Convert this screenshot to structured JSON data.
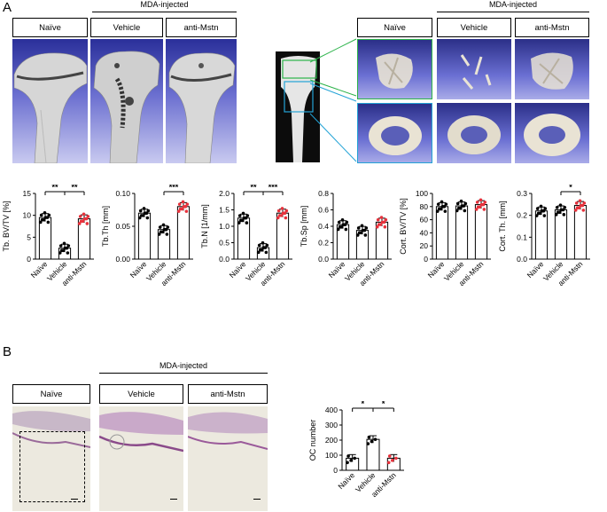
{
  "panelA": {
    "letter": "A",
    "group_header_left": "MDA-injected",
    "group_header_right": "MDA-injected",
    "labels_left": [
      "Naïve",
      "Vehicle",
      "anti-Mstn"
    ],
    "labels_right": [
      "Naïve",
      "Vehicle",
      "anti-Mstn"
    ]
  },
  "panelB": {
    "letter": "B",
    "group_header": "MDA-injected",
    "labels": [
      "Naïve",
      "Vehicle",
      "anti-Mstn"
    ]
  },
  "colors": {
    "naive": "#000000",
    "vehicle": "#000000",
    "anti_mstn": "#e8323c",
    "green_box": "#2cb34a",
    "cyan_box": "#23a3d6"
  },
  "chart_data": [
    {
      "type": "bar",
      "ylabel": "Tb. BV/TV [%]",
      "categories": [
        "Naïve",
        "Vehicle",
        "anti-Mstn"
      ],
      "values": [
        9.5,
        2.5,
        9.2
      ],
      "ylim": [
        0,
        15
      ],
      "yticks": [
        "0",
        "5",
        "10",
        "15"
      ],
      "significance": [
        {
          "between": [
            0,
            1
          ],
          "label": "**"
        },
        {
          "between": [
            1,
            2
          ],
          "label": "**"
        }
      ]
    },
    {
      "type": "bar",
      "ylabel": "Tb.Th [mm]",
      "categories": [
        "Naïve",
        "Vehicle",
        "anti-Mstn"
      ],
      "values": [
        0.07,
        0.045,
        0.08
      ],
      "ylim": [
        0,
        0.1
      ],
      "yticks": [
        "0.00",
        "0.05",
        "0.10"
      ],
      "significance": [
        {
          "between": [
            1,
            2
          ],
          "label": "***"
        }
      ]
    },
    {
      "type": "bar",
      "ylabel": "Tb.N [1/mm]",
      "categories": [
        "Naïve",
        "Vehicle",
        "anti-Mstn"
      ],
      "values": [
        1.25,
        0.35,
        1.4
      ],
      "ylim": [
        0,
        2.0
      ],
      "yticks": [
        "0.0",
        "0.5",
        "1.0",
        "1.5",
        "2.0"
      ],
      "significance": [
        {
          "between": [
            0,
            1
          ],
          "label": "**"
        },
        {
          "between": [
            1,
            2
          ],
          "label": "***"
        }
      ]
    },
    {
      "type": "bar",
      "ylabel": "Tb.Sp [mm]",
      "categories": [
        "Naïve",
        "Vehicle",
        "anti-Mstn"
      ],
      "values": [
        0.42,
        0.35,
        0.45
      ],
      "ylim": [
        0,
        0.8
      ],
      "yticks": [
        "0.0",
        "0.2",
        "0.4",
        "0.6",
        "0.8"
      ],
      "significance": []
    },
    {
      "type": "bar",
      "ylabel": "Cort. BV/TV [%]",
      "categories": [
        "Naïve",
        "Vehicle",
        "anti-Mstn"
      ],
      "values": [
        80,
        81,
        83
      ],
      "ylim": [
        0,
        100
      ],
      "yticks": [
        "0",
        "20",
        "40",
        "60",
        "80",
        "100"
      ],
      "significance": []
    },
    {
      "type": "bar",
      "ylabel": "Cort. Th. [mm]",
      "categories": [
        "Naïve",
        "Vehicle",
        "anti-Mstn"
      ],
      "values": [
        0.22,
        0.225,
        0.245
      ],
      "ylim": [
        0,
        0.3
      ],
      "yticks": [
        "0.0",
        "0.1",
        "0.2",
        "0.3"
      ],
      "significance": [
        {
          "between": [
            1,
            2
          ],
          "label": "*"
        }
      ]
    },
    {
      "type": "bar",
      "ylabel": "OC number",
      "categories": [
        "Naïve",
        "Vehicle",
        "anti-Mstn"
      ],
      "values": [
        80,
        205,
        80
      ],
      "ylim": [
        0,
        400
      ],
      "yticks": [
        "0",
        "100",
        "200",
        "300",
        "400"
      ],
      "significance": [
        {
          "between": [
            0,
            1
          ],
          "label": "*"
        },
        {
          "between": [
            1,
            2
          ],
          "label": "*"
        }
      ]
    }
  ]
}
